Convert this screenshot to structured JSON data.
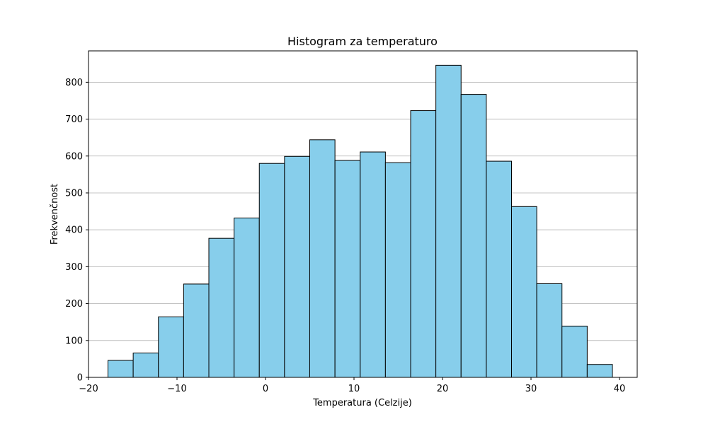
{
  "chart_data": {
    "type": "bar",
    "title": "Histogram za temperaturo",
    "xlabel": "Temperatura (Celzije)",
    "ylabel": "Frekvenčnost",
    "xlim": [
      -20,
      42
    ],
    "ylim": [
      0,
      885
    ],
    "xticks": [
      -20,
      -10,
      0,
      10,
      20,
      30,
      40
    ],
    "xtick_labels": [
      "−20",
      "−10",
      "0",
      "10",
      "20",
      "30",
      "40"
    ],
    "yticks": [
      0,
      100,
      200,
      300,
      400,
      500,
      600,
      700,
      800
    ],
    "yticks_labels": [
      "0",
      "100",
      "200",
      "300",
      "400",
      "500",
      "600",
      "700",
      "800"
    ],
    "grid": "y",
    "bar_color": "#87ceeb",
    "edge_color": "#000000",
    "bins": [
      {
        "x0": -17.8,
        "x1": -14.95,
        "value": 46
      },
      {
        "x0": -14.95,
        "x1": -12.1,
        "value": 66
      },
      {
        "x0": -12.1,
        "x1": -9.25,
        "value": 164
      },
      {
        "x0": -9.25,
        "x1": -6.4,
        "value": 253
      },
      {
        "x0": -6.4,
        "x1": -3.55,
        "value": 377
      },
      {
        "x0": -3.55,
        "x1": -0.7,
        "value": 432
      },
      {
        "x0": -0.7,
        "x1": 2.15,
        "value": 580
      },
      {
        "x0": 2.15,
        "x1": 5.0,
        "value": 599
      },
      {
        "x0": 5.0,
        "x1": 7.85,
        "value": 644
      },
      {
        "x0": 7.85,
        "x1": 10.7,
        "value": 588
      },
      {
        "x0": 10.7,
        "x1": 13.55,
        "value": 611
      },
      {
        "x0": 13.55,
        "x1": 16.4,
        "value": 582
      },
      {
        "x0": 16.4,
        "x1": 19.25,
        "value": 723
      },
      {
        "x0": 19.25,
        "x1": 22.1,
        "value": 846
      },
      {
        "x0": 22.1,
        "x1": 24.95,
        "value": 767
      },
      {
        "x0": 24.95,
        "x1": 27.8,
        "value": 586
      },
      {
        "x0": 27.8,
        "x1": 30.65,
        "value": 463
      },
      {
        "x0": 30.65,
        "x1": 33.5,
        "value": 254
      },
      {
        "x0": 33.5,
        "x1": 36.35,
        "value": 139
      },
      {
        "x0": 36.35,
        "x1": 39.2,
        "value": 35
      }
    ]
  }
}
